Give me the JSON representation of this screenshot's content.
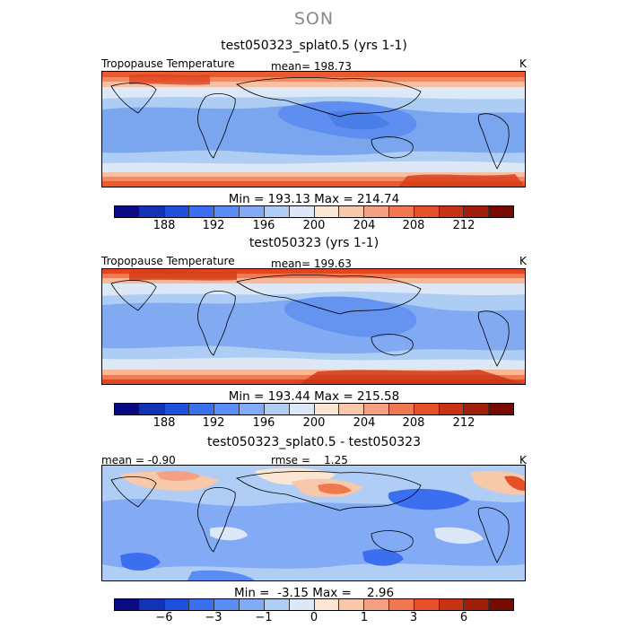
{
  "figure": {
    "season": "SON"
  },
  "colorbar_colors": [
    "#0a0a82",
    "#1432b4",
    "#1e50dc",
    "#3c6ef0",
    "#5a8cf5",
    "#82aaf5",
    "#afcdf5",
    "#dce8f8",
    "#fae6d2",
    "#f8c8aa",
    "#f5a082",
    "#f07850",
    "#e65028",
    "#c83214",
    "#a01e0a",
    "#780a00"
  ],
  "panels": [
    {
      "title": "test050323_splat0.5 (yrs 1-1)",
      "left_label": "Tropopause Temperature",
      "center_label": "mean= 198.73",
      "right_label": "K",
      "minmax": "Min = 193.13 Max = 214.74",
      "ticks": [
        "188",
        "192",
        "196",
        "200",
        "204",
        "208",
        "212"
      ]
    },
    {
      "title": "test050323 (yrs 1-1)",
      "left_label": "Tropopause Temperature",
      "center_label": "mean= 199.63",
      "right_label": "K",
      "minmax": "Min = 193.44 Max = 215.58",
      "ticks": [
        "188",
        "192",
        "196",
        "200",
        "204",
        "208",
        "212"
      ]
    },
    {
      "title": "test050323_splat0.5 - test050323",
      "left_label": "mean =  -0.90",
      "center_label": "rmse =    1.25",
      "right_label": "K",
      "minmax": "Min =  -3.15 Max =    2.96",
      "ticks": [
        "−6",
        "−3",
        "−1",
        "0",
        "1",
        "3",
        "6"
      ]
    }
  ]
}
